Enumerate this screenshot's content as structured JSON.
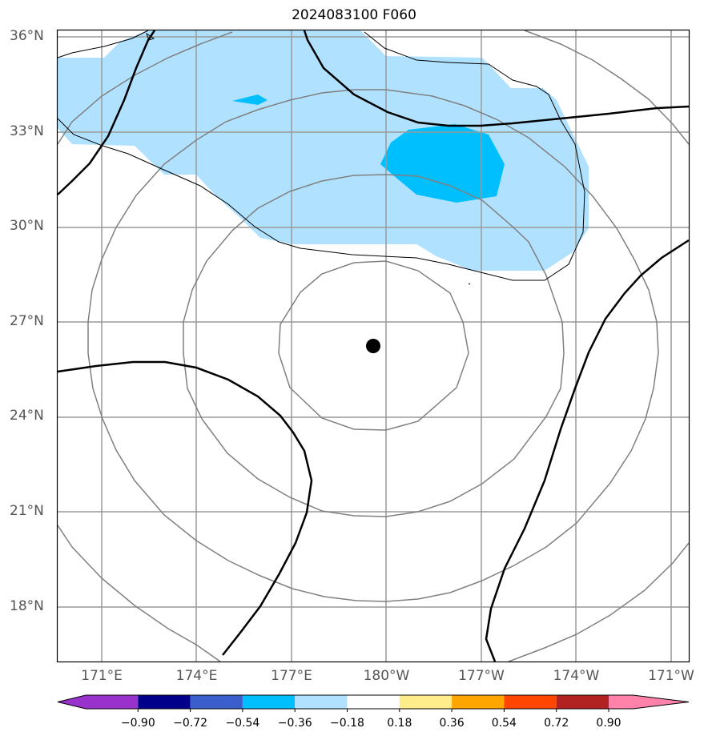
{
  "title": "2024083100 F060",
  "lat_labels": [
    {
      "text": "36°N",
      "lat": 36
    },
    {
      "text": "33°N",
      "lat": 33
    },
    {
      "text": "30°N",
      "lat": 30
    },
    {
      "text": "27°N",
      "lat": 27
    },
    {
      "text": "24°N",
      "lat": 24
    },
    {
      "text": "21°N",
      "lat": 21
    },
    {
      "text": "18°N",
      "lat": 18
    }
  ],
  "lon_labels": [
    {
      "text": "171°E",
      "lon": 171
    },
    {
      "text": "174°E",
      "lon": 174
    },
    {
      "text": "177°E",
      "lon": 177
    },
    {
      "text": "180°W",
      "lon": 180
    },
    {
      "text": "177°W",
      "lon": 183
    },
    {
      "text": "174°W",
      "lon": 186
    },
    {
      "text": "171°W",
      "lon": 189
    }
  ],
  "colorbar": {
    "colors": [
      "#9932CC",
      "#00008B",
      "#3A5FCD",
      "#00BFFF",
      "#B0E2FF",
      "#FFFFFF",
      "#FFEC8B",
      "#FFA500",
      "#FF4500",
      "#B22222",
      "#FF82AB"
    ],
    "labels": [
      "−0.90",
      "−0.72",
      "−0.54",
      "−0.36",
      "−0.18",
      "0.18",
      "0.36",
      "0.54",
      "0.72",
      "0.90"
    ]
  },
  "storm_center": {
    "lat": 26.2,
    "lon": 179.5
  }
}
